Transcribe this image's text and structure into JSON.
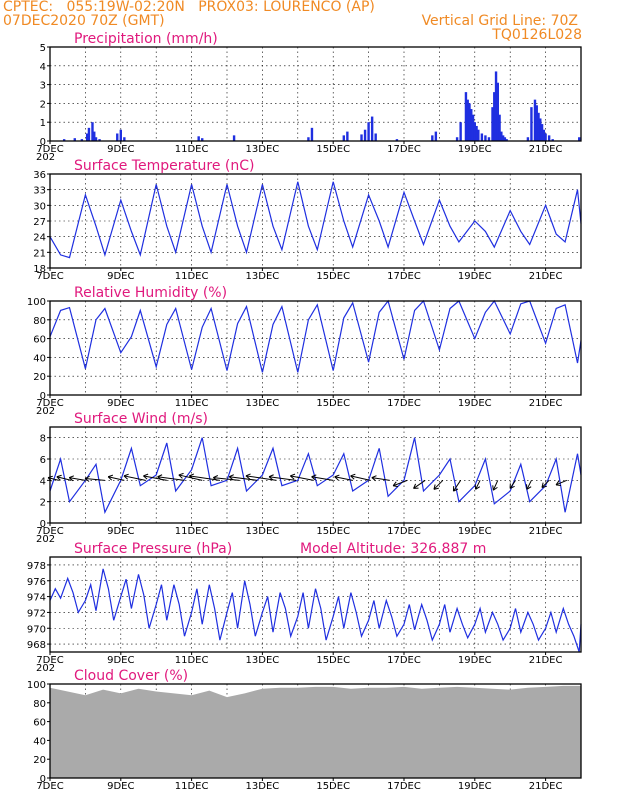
{
  "header": {
    "line1_left": "CPTEC:   055:19W-02:20N   PROX03: LOURENCO (AP)",
    "line2_left": "07DEC2020 70Z (GMT)",
    "line2_right": "Vertical Grid Line: 70Z",
    "line3_right": "TQ0126L028"
  },
  "colors": {
    "header": "#f08a24",
    "title": "#e0197d",
    "series": "#1f2fe0",
    "cloud": "#aaaaaa",
    "grid": "#000000"
  },
  "chart_data": [
    {
      "id": "precip",
      "type": "bar",
      "title": "Precipitation (mm/h)",
      "ylim": [
        0,
        5
      ],
      "yticks": [
        0,
        1,
        2,
        3,
        4,
        5
      ],
      "xlabels": [
        "7DEC",
        "9DEC",
        "11DEC",
        "13DEC",
        "15DEC",
        "17DEC",
        "19DEC",
        "21DEC"
      ],
      "under_label": "202",
      "xlim_days": [
        7,
        22
      ],
      "series": [
        {
          "x": [
            7.4,
            7.7,
            7.9,
            8.05,
            8.1,
            8.2,
            8.25,
            8.3,
            8.4,
            8.9,
            9.0,
            9.1,
            11.2,
            11.3,
            12.2,
            14.3,
            14.4,
            15.3,
            15.4,
            15.8,
            15.9,
            16.0,
            16.1,
            16.2,
            16.8,
            17.8,
            17.9,
            18.5,
            18.6,
            18.75,
            18.8,
            18.85,
            18.9,
            18.95,
            19.0,
            19.05,
            19.1,
            19.2,
            19.3,
            19.4,
            19.5,
            19.55,
            19.6,
            19.65,
            19.7,
            19.75,
            19.8,
            19.85,
            19.9,
            20.5,
            20.6,
            20.7,
            20.75,
            20.8,
            20.85,
            20.9,
            20.95,
            21.0,
            21.1,
            21.2,
            21.95
          ],
          "values": [
            0.1,
            0.15,
            0.1,
            0.4,
            0.7,
            1.0,
            0.5,
            0.2,
            0.1,
            0.4,
            0.6,
            0.2,
            0.25,
            0.15,
            0.3,
            0.2,
            0.7,
            0.3,
            0.5,
            0.35,
            0.6,
            1.0,
            1.3,
            0.4,
            0.1,
            0.3,
            0.5,
            0.2,
            1.0,
            2.6,
            2.2,
            2.0,
            1.7,
            1.4,
            1.0,
            0.8,
            0.6,
            0.4,
            0.3,
            0.2,
            1.8,
            2.6,
            3.7,
            3.1,
            1.4,
            0.5,
            0.3,
            0.2,
            0.1,
            0.2,
            1.8,
            2.2,
            1.9,
            1.5,
            1.2,
            0.9,
            0.6,
            0.4,
            0.3,
            0.1,
            0.2
          ]
        }
      ]
    },
    {
      "id": "temp",
      "type": "line",
      "title": "Surface Temperature (nC)",
      "ylim": [
        18,
        36
      ],
      "yticks": [
        18,
        21,
        24,
        27,
        30,
        33,
        36
      ],
      "xlabels": [
        "7DEC",
        "9DEC",
        "11DEC",
        "13DEC",
        "15DEC",
        "17DEC",
        "19DEC",
        "21DEC"
      ],
      "under_label": "",
      "xlim_days": [
        7,
        22
      ],
      "series": [
        {
          "x": [
            7.0,
            7.3,
            7.55,
            8.0,
            8.3,
            8.55,
            9.0,
            9.3,
            9.55,
            10.0,
            10.3,
            10.55,
            11.0,
            11.3,
            11.55,
            12.0,
            12.3,
            12.55,
            13.0,
            13.3,
            13.55,
            14.0,
            14.3,
            14.55,
            15.0,
            15.3,
            15.55,
            16.0,
            16.3,
            16.55,
            17.0,
            17.3,
            17.55,
            18.0,
            18.3,
            18.55,
            19.0,
            19.3,
            19.55,
            20.0,
            20.3,
            20.55,
            21.0,
            21.3,
            21.55,
            21.9,
            22.0
          ],
          "values": [
            24,
            20.5,
            20,
            32,
            26,
            20.5,
            31,
            25,
            20.5,
            34,
            26,
            21,
            34,
            26,
            21,
            34,
            26,
            21,
            34,
            26,
            21.5,
            34.5,
            26,
            21.5,
            34.5,
            27,
            22,
            32,
            27,
            22,
            32.5,
            27,
            22.5,
            31,
            26,
            23,
            27,
            25,
            22,
            29,
            25,
            22.5,
            30,
            24.5,
            23,
            33,
            26.5
          ]
        }
      ]
    },
    {
      "id": "rh",
      "type": "line",
      "title": "Relative Humidity (%)",
      "ylim": [
        0,
        100
      ],
      "yticks": [
        0,
        20,
        40,
        60,
        80,
        100
      ],
      "xlabels": [
        "7DEC",
        "9DEC",
        "11DEC",
        "13DEC",
        "15DEC",
        "17DEC",
        "19DEC",
        "21DEC"
      ],
      "under_label": "202",
      "xlim_days": [
        7,
        22
      ],
      "series": [
        {
          "x": [
            7.0,
            7.3,
            7.55,
            8.0,
            8.3,
            8.55,
            9.0,
            9.3,
            9.55,
            10.0,
            10.3,
            10.55,
            11.0,
            11.3,
            11.55,
            12.0,
            12.3,
            12.55,
            13.0,
            13.3,
            13.55,
            14.0,
            14.3,
            14.55,
            15.0,
            15.3,
            15.55,
            16.0,
            16.3,
            16.55,
            17.0,
            17.3,
            17.55,
            18.0,
            18.3,
            18.55,
            19.0,
            19.3,
            19.55,
            20.0,
            20.3,
            20.55,
            21.0,
            21.3,
            21.55,
            21.9,
            22.0
          ],
          "values": [
            62,
            90,
            93,
            28,
            80,
            92,
            45,
            62,
            90,
            30,
            75,
            92,
            27,
            72,
            92,
            26,
            76,
            94,
            24,
            75,
            94,
            24,
            80,
            96,
            26,
            82,
            98,
            35,
            88,
            100,
            38,
            90,
            100,
            48,
            92,
            100,
            60,
            88,
            100,
            65,
            97,
            100,
            55,
            92,
            96,
            34,
            58
          ]
        }
      ]
    },
    {
      "id": "wind",
      "type": "line",
      "title": "Surface Wind (m/s)",
      "ylim": [
        0,
        9
      ],
      "yticks": [
        0,
        2,
        4,
        6,
        8
      ],
      "xlabels": [
        "7DEC",
        "9DEC",
        "11DEC",
        "13DEC",
        "15DEC",
        "17DEC",
        "19DEC",
        "21DEC"
      ],
      "under_label": "202",
      "xlim_days": [
        7,
        22
      ],
      "series": [
        {
          "x": [
            7.0,
            7.3,
            7.55,
            8.0,
            8.3,
            8.55,
            9.0,
            9.3,
            9.55,
            10.0,
            10.3,
            10.55,
            11.0,
            11.3,
            11.55,
            12.0,
            12.3,
            12.55,
            13.0,
            13.3,
            13.55,
            14.0,
            14.3,
            14.55,
            15.0,
            15.3,
            15.55,
            16.0,
            16.3,
            16.55,
            17.0,
            17.3,
            17.55,
            18.0,
            18.3,
            18.55,
            19.0,
            19.3,
            19.55,
            20.0,
            20.3,
            20.55,
            21.0,
            21.3,
            21.55,
            21.9,
            22.0
          ],
          "values": [
            3,
            6,
            2,
            4,
            5.5,
            1,
            4,
            7,
            3.5,
            4.5,
            7.5,
            3,
            5,
            8,
            3.5,
            4,
            7,
            3,
            4.5,
            7,
            3.5,
            4,
            6.5,
            3.5,
            4.5,
            6.5,
            3,
            4,
            7,
            2.5,
            4,
            8,
            3,
            4.5,
            6,
            2,
            3.5,
            6,
            1.8,
            3,
            5.5,
            2,
            3.5,
            6,
            1,
            6.5,
            4.5
          ]
        }
      ],
      "vectors": {
        "x": [
          7.25,
          7.6,
          8.0,
          8.55,
          9.1,
          9.7,
          10.3,
          10.8,
          11.3,
          11.8,
          12.35,
          12.85,
          13.4,
          13.95,
          14.45,
          15.0,
          15.55,
          16.05,
          16.6,
          17.1,
          17.6,
          18.1,
          18.6,
          19.15,
          19.65,
          20.15,
          20.6,
          21.1,
          21.6
        ],
        "u": [
          -1.2,
          -1.6,
          -1.8,
          -2.2,
          -1.8,
          -2.4,
          -2.6,
          -3.0,
          -2.6,
          -3.4,
          -2.9,
          -3.1,
          -3.4,
          -3.0,
          -2.6,
          -2.4,
          -2.0,
          -2.2,
          -2.0,
          -1.6,
          -1.3,
          -1.0,
          -0.8,
          -0.5,
          -0.5,
          -0.6,
          -0.5,
          -0.8,
          -1.2
        ],
        "v": [
          0.3,
          0.4,
          0.3,
          0.2,
          0.4,
          0.5,
          0.5,
          0.4,
          0.6,
          0.5,
          0.3,
          0.4,
          0.5,
          0.4,
          0.5,
          0.4,
          0.4,
          0.5,
          0.3,
          -0.6,
          -0.9,
          -1.0,
          -1.2,
          -1.0,
          -1.1,
          -0.9,
          -1.0,
          -0.8,
          -0.5
        ]
      }
    },
    {
      "id": "pres",
      "type": "line",
      "title": "Surface Pressure (hPa)",
      "subtitle": "Model Altitude: 326.887  m",
      "ylim": [
        967,
        979
      ],
      "yticks": [
        968,
        970,
        972,
        974,
        976,
        978
      ],
      "xlabels": [
        "7DEC",
        "9DEC",
        "11DEC",
        "13DEC",
        "15DEC",
        "17DEC",
        "19DEC",
        "21DEC"
      ],
      "under_label": "202",
      "xlim_days": [
        7,
        22
      ],
      "series": [
        {
          "x": [
            7.0,
            7.15,
            7.3,
            7.5,
            7.65,
            7.8,
            8.0,
            8.15,
            8.3,
            8.5,
            8.65,
            8.8,
            9.0,
            9.15,
            9.3,
            9.5,
            9.65,
            9.8,
            10.0,
            10.15,
            10.3,
            10.5,
            10.65,
            10.8,
            11.0,
            11.15,
            11.3,
            11.5,
            11.65,
            11.8,
            12.0,
            12.15,
            12.3,
            12.5,
            12.65,
            12.8,
            13.0,
            13.15,
            13.3,
            13.5,
            13.65,
            13.8,
            14.0,
            14.15,
            14.3,
            14.5,
            14.65,
            14.8,
            15.0,
            15.15,
            15.3,
            15.5,
            15.65,
            15.8,
            16.0,
            16.15,
            16.3,
            16.5,
            16.65,
            16.8,
            17.0,
            17.15,
            17.3,
            17.5,
            17.65,
            17.8,
            18.0,
            18.15,
            18.3,
            18.5,
            18.65,
            18.8,
            19.0,
            19.15,
            19.3,
            19.5,
            19.65,
            19.8,
            20.0,
            20.15,
            20.3,
            20.5,
            20.65,
            20.8,
            21.0,
            21.15,
            21.3,
            21.5,
            21.65,
            21.8,
            21.95,
            22.0
          ],
          "values": [
            973.5,
            975,
            973.8,
            976.3,
            974.5,
            972,
            973.5,
            975.5,
            972.2,
            977.5,
            975,
            971,
            974,
            976.2,
            972.5,
            976.8,
            974.2,
            970,
            973,
            975.5,
            971,
            975.5,
            973,
            969,
            972,
            975,
            970.5,
            975.5,
            972.5,
            968.5,
            972,
            974.5,
            970,
            976,
            973,
            969,
            972,
            974,
            969.5,
            974.5,
            972.5,
            969,
            971.5,
            974.5,
            970,
            975,
            972.5,
            968.5,
            971.5,
            974,
            970,
            974.5,
            972,
            969,
            971,
            973.5,
            970,
            973.5,
            971.5,
            969,
            970.5,
            973,
            969.8,
            973,
            971,
            968.5,
            970.5,
            973,
            969.5,
            972.5,
            970.5,
            968.8,
            970.5,
            972.5,
            969.5,
            972,
            970.5,
            968.5,
            970,
            972.5,
            969.5,
            972,
            970.5,
            968.5,
            970,
            972,
            969.5,
            972.5,
            970.5,
            969,
            967,
            970.5
          ]
        }
      ]
    },
    {
      "id": "cloud",
      "type": "area",
      "title": "Cloud Cover (%)",
      "ylim": [
        0,
        100
      ],
      "yticks": [
        0,
        20,
        40,
        60,
        80,
        100
      ],
      "xlabels": [
        "7DEC",
        "9DEC",
        "11DEC",
        "13DEC",
        "15DEC",
        "17DEC",
        "19DEC",
        "21DEC"
      ],
      "under_label": "",
      "xlim_days": [
        7,
        22
      ],
      "series": [
        {
          "x": [
            7.0,
            7.5,
            8.0,
            8.5,
            9.0,
            9.5,
            10.0,
            10.5,
            11.0,
            11.5,
            12.0,
            12.5,
            13.0,
            13.5,
            14.0,
            14.5,
            15.0,
            15.5,
            16.0,
            16.5,
            17.0,
            17.5,
            18.0,
            18.5,
            19.0,
            19.5,
            20.0,
            20.5,
            21.0,
            21.5,
            22.0
          ],
          "values": [
            96,
            92,
            88,
            94,
            90,
            95,
            92,
            90,
            88,
            93,
            86,
            90,
            95,
            96,
            96,
            97,
            97,
            95,
            96,
            96,
            97,
            95,
            96,
            97,
            96,
            95,
            94,
            96,
            97,
            98,
            98
          ]
        }
      ]
    }
  ]
}
